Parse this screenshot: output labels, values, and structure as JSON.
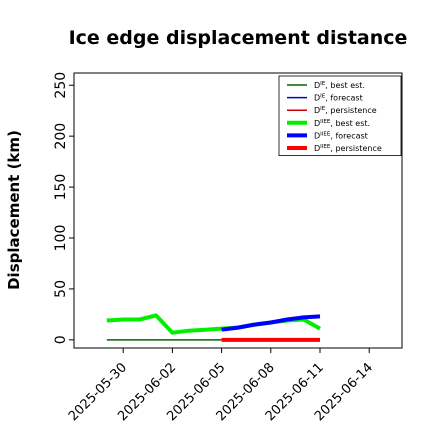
{
  "chart_data": {
    "type": "line",
    "title": "Ice edge displacement distance",
    "xlabel": "",
    "ylabel": "Displacement (km)",
    "ylim": [
      -8,
      262
    ],
    "xlim": [
      "2025-05-27",
      "2025-06-16"
    ],
    "yticks": [
      0,
      50,
      100,
      150,
      200,
      250
    ],
    "xticks": [
      {
        "date": "2025-05-30",
        "label": "2025-05-30",
        "color": "#000000"
      },
      {
        "date": "2025-06-02",
        "label": "2025-06-02",
        "color": "#000000"
      },
      {
        "date": "2025-06-05",
        "label": "2025-06-05",
        "color": "#228b22"
      },
      {
        "date": "2025-06-08",
        "label": "2025-06-08",
        "color": "#000000"
      },
      {
        "date": "2025-06-11",
        "label": "2025-06-11",
        "color": "#000000"
      },
      {
        "date": "2025-06-14",
        "label": "2025-06-14",
        "color": "#000000"
      }
    ],
    "grid": false,
    "legend_position": "top-right",
    "series": [
      {
        "key": "de_best",
        "name": "D",
        "sup": "IE",
        "name_suffix": ", best est.",
        "color": "#006400",
        "width": 1.5,
        "x": [
          "2025-05-29",
          "2025-06-05"
        ],
        "y": [
          0,
          0
        ]
      },
      {
        "key": "de_forecast",
        "name": "D",
        "sup": "IE",
        "name_suffix": ", forecast",
        "color": "#0000cd",
        "width": 1.5,
        "x": [],
        "y": []
      },
      {
        "key": "de_persistence",
        "name": "D",
        "sup": "IE",
        "name_suffix": ", persistence",
        "color": "#cc0000",
        "width": 1.5,
        "x": [],
        "y": []
      },
      {
        "key": "dii_best",
        "name": "D",
        "sup": "IIEE",
        "name_suffix": ", best est.",
        "color": "#00ee00",
        "width": 4,
        "x": [
          "2025-05-29",
          "2025-05-30",
          "2025-05-31",
          "2025-06-01",
          "2025-06-02",
          "2025-06-03",
          "2025-06-04",
          "2025-06-05",
          "2025-06-06",
          "2025-06-07",
          "2025-06-08",
          "2025-06-09",
          "2025-06-10",
          "2025-06-11"
        ],
        "y": [
          19,
          20,
          20,
          24,
          7,
          9,
          10,
          11,
          12,
          15,
          17,
          19,
          20,
          11
        ]
      },
      {
        "key": "dii_forecast",
        "name": "D",
        "sup": "IIEE",
        "name_suffix": ", forecast",
        "color": "#0000ff",
        "width": 4,
        "x": [
          "2025-06-05",
          "2025-06-06",
          "2025-06-07",
          "2025-06-08",
          "2025-06-09",
          "2025-06-10",
          "2025-06-11"
        ],
        "y": [
          10,
          12,
          15,
          17,
          20,
          22,
          23
        ]
      },
      {
        "key": "dii_persistence",
        "name": "D",
        "sup": "IIEE",
        "name_suffix": ", persistence",
        "color": "#ff0000",
        "width": 4,
        "x": [
          "2025-06-05",
          "2025-06-06",
          "2025-06-07",
          "2025-06-08",
          "2025-06-09",
          "2025-06-10",
          "2025-06-11"
        ],
        "y": [
          0,
          0,
          0,
          0,
          0,
          0,
          0
        ]
      }
    ]
  }
}
